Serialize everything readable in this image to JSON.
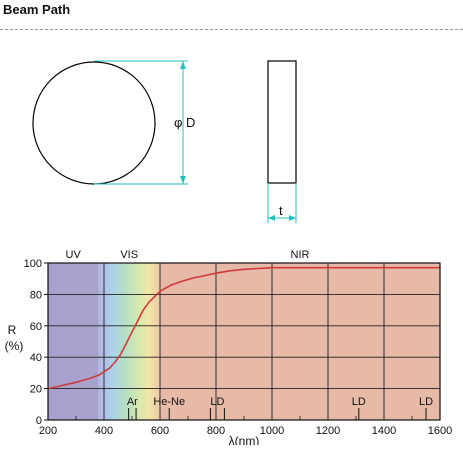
{
  "header": {
    "title": "Beam Path"
  },
  "diagram": {
    "diameter_label": "φ D",
    "thickness_label": "t",
    "colors": {
      "line": "#000000",
      "dimension": "#23c2c2"
    }
  },
  "chart_data": {
    "type": "line",
    "title": "",
    "xlabel": "λ(nm)",
    "ylabel": "R\n(%)",
    "xlim": [
      200,
      1600
    ],
    "ylim": [
      0,
      100
    ],
    "x_ticks": [
      200,
      400,
      600,
      800,
      1000,
      1200,
      1400,
      1600
    ],
    "y_ticks": [
      0,
      20,
      40,
      60,
      80,
      100
    ],
    "grid": true,
    "regions": [
      {
        "label": "UV",
        "from": 200,
        "to": 380,
        "color": "#a7a2cd"
      },
      {
        "label": "VIS",
        "from": 380,
        "to": 600,
        "color": "spectrum"
      },
      {
        "label": "NIR",
        "from": 600,
        "to": 1600,
        "color": "#e7b9a7"
      }
    ],
    "markers": [
      {
        "label": "Ar",
        "x": [
          488,
          514.5
        ]
      },
      {
        "label": "He-Ne",
        "x": [
          633
        ]
      },
      {
        "label": "LD",
        "x": [
          780,
          830
        ]
      },
      {
        "label": "LD",
        "x": [
          1310
        ]
      },
      {
        "label": "LD",
        "x": [
          1550
        ]
      }
    ],
    "series": [
      {
        "color": "#d23b3b",
        "x": [
          200,
          250,
          300,
          350,
          380,
          420,
          440,
          460,
          480,
          500,
          520,
          540,
          560,
          580,
          600,
          640,
          680,
          720,
          760,
          800,
          850,
          900,
          950,
          1000,
          1100,
          1200,
          1300,
          1400,
          1500,
          1600
        ],
        "y": [
          20,
          22,
          24,
          26.5,
          28.5,
          33,
          37,
          42,
          49,
          56,
          63,
          70,
          75,
          78.5,
          82,
          86,
          88.5,
          90.5,
          92,
          93.5,
          95,
          96,
          96.5,
          97,
          97,
          97,
          97,
          97,
          97,
          97
        ]
      }
    ]
  }
}
